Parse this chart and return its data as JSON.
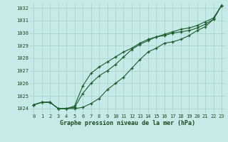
{
  "title": "Graphe pression niveau de la mer (hPa)",
  "bg_color": "#c5eae8",
  "grid_color": "#a8d4d0",
  "line_color": "#1a5e2a",
  "xlim_min": -0.5,
  "xlim_max": 23.5,
  "ylim_min": 1023.6,
  "ylim_max": 1032.4,
  "yticks": [
    1024,
    1025,
    1026,
    1027,
    1028,
    1029,
    1030,
    1031,
    1032
  ],
  "xticks": [
    0,
    1,
    2,
    3,
    4,
    5,
    6,
    7,
    8,
    9,
    10,
    11,
    12,
    13,
    14,
    15,
    16,
    17,
    18,
    19,
    20,
    21,
    22,
    23
  ],
  "series1": [
    1024.3,
    1024.5,
    1024.5,
    1024.0,
    1024.0,
    1024.0,
    1024.1,
    1024.4,
    1024.8,
    1025.5,
    1026.0,
    1026.5,
    1027.2,
    1027.9,
    1028.5,
    1028.8,
    1029.2,
    1029.3,
    1029.5,
    1029.8,
    1030.2,
    1030.5,
    1031.1,
    1032.2
  ],
  "series2": [
    1024.3,
    1024.5,
    1024.5,
    1024.0,
    1024.0,
    1024.1,
    1025.2,
    1026.0,
    1026.6,
    1027.0,
    1027.5,
    1028.1,
    1028.7,
    1029.1,
    1029.4,
    1029.7,
    1029.8,
    1030.0,
    1030.1,
    1030.2,
    1030.4,
    1030.7,
    1031.1,
    1032.2
  ],
  "series3": [
    1024.3,
    1024.5,
    1024.5,
    1024.0,
    1024.0,
    1024.2,
    1025.8,
    1026.8,
    1027.3,
    1027.7,
    1028.1,
    1028.5,
    1028.8,
    1029.2,
    1029.5,
    1029.7,
    1029.9,
    1030.1,
    1030.3,
    1030.4,
    1030.6,
    1030.9,
    1031.2,
    1032.2
  ]
}
